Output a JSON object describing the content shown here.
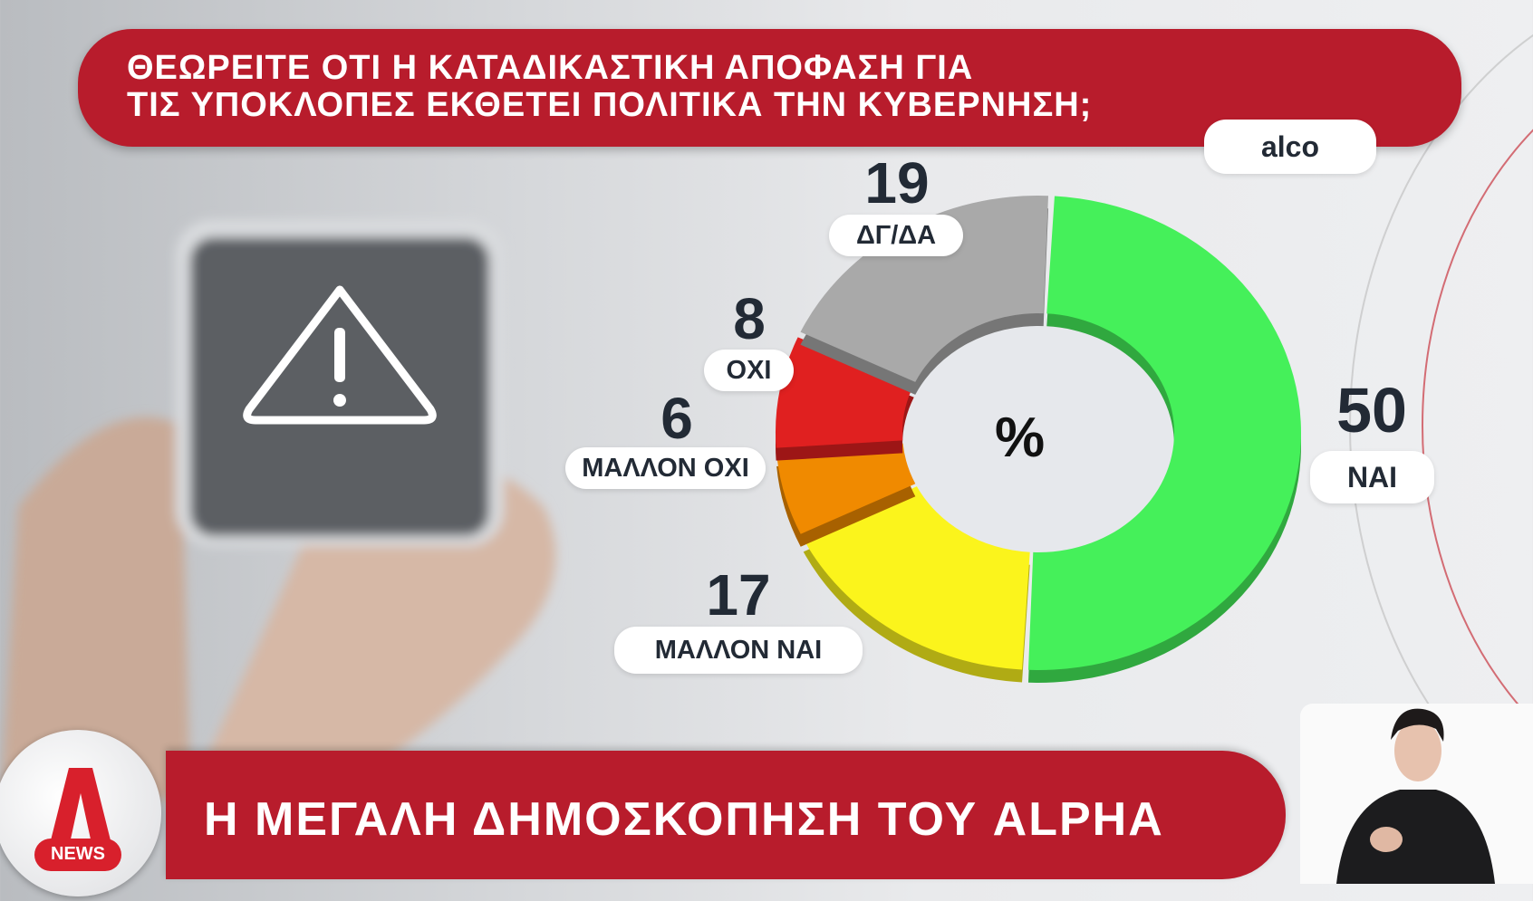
{
  "header": {
    "title_lines": [
      "ΘΕΩΡΕΙΤΕ ΟΤΙ Η ΚΑΤΑΔΙΚΑΣΤΙΚΗ ΑΠΟΦΑΣΗ ΓΙΑ",
      "ΤΙΣ ΥΠΟΚΛΟΠΕΣ ΕΚΘΕΤΕΙ ΠΟΛΙΤΙΚΑ ΤΗΝ ΚΥΒΕΡΝΗΣΗ;"
    ],
    "source": "alco"
  },
  "chart_data": {
    "type": "pie",
    "donut": true,
    "title": "ΘΕΩΡΕΙΤΕ ΟΤΙ Η ΚΑΤΑΔΙΚΑΣΤΙΚΗ ΑΠΟΦΑΣΗ ΓΙΑ ΤΙΣ ΥΠΟΚΛΟΠΕΣ ΕΚΘΕΤΕΙ ΠΟΛΙΤΙΚΑ ΤΗΝ ΚΥΒΕΡΝΗΣΗ;",
    "center_label": "%",
    "categories": [
      "ΝΑΙ",
      "ΜΑΛΛΟΝ ΝΑΙ",
      "ΜΑΛΛΟΝ ΟΧΙ",
      "ΟΧΙ",
      "ΔΓ/ΔΑ"
    ],
    "values": [
      50,
      17,
      6,
      8,
      19
    ],
    "colors": [
      "#45f05a",
      "#fbf41c",
      "#f08a00",
      "#e02020",
      "#a9a9a9"
    ]
  },
  "footer": {
    "headline": "Η ΜΕΓΑΛΗ ΔΗΜΟΣΚΟΠΗΣΗ ΤΟΥ ALPHA",
    "logo_text": "NEWS",
    "logo_letter": "A"
  },
  "colors": {
    "brand_red": "#b81c2c"
  },
  "icons": {
    "phone_warning": "warning-triangle-icon"
  }
}
